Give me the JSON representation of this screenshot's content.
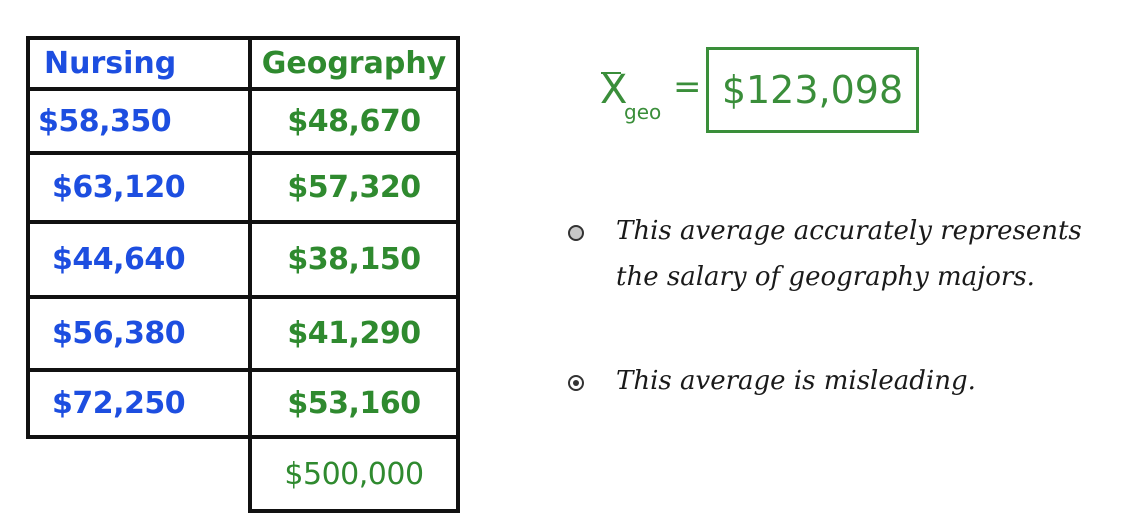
{
  "table": {
    "headers": {
      "nursing": "Nursing",
      "geography": "Geography"
    },
    "nursing": [
      "$58,350",
      "$63,120",
      "$44,640",
      "$56,380",
      "$72,250"
    ],
    "geography": [
      "$48,670",
      "$57,320",
      "$38,150",
      "$41,290",
      "$53,160",
      "$500,000"
    ]
  },
  "formula": {
    "symbol": "X",
    "subscript": "geo",
    "equals": "=",
    "value": "$123,098"
  },
  "options": [
    {
      "text": "This average accurately represents the salary of geography majors.",
      "selected": false
    },
    {
      "text": "This average is misleading.",
      "selected": true
    }
  ],
  "colors": {
    "nursing": "#1d4ee0",
    "geography": "#2f8a2f",
    "formula": "#3a8e3a"
  }
}
